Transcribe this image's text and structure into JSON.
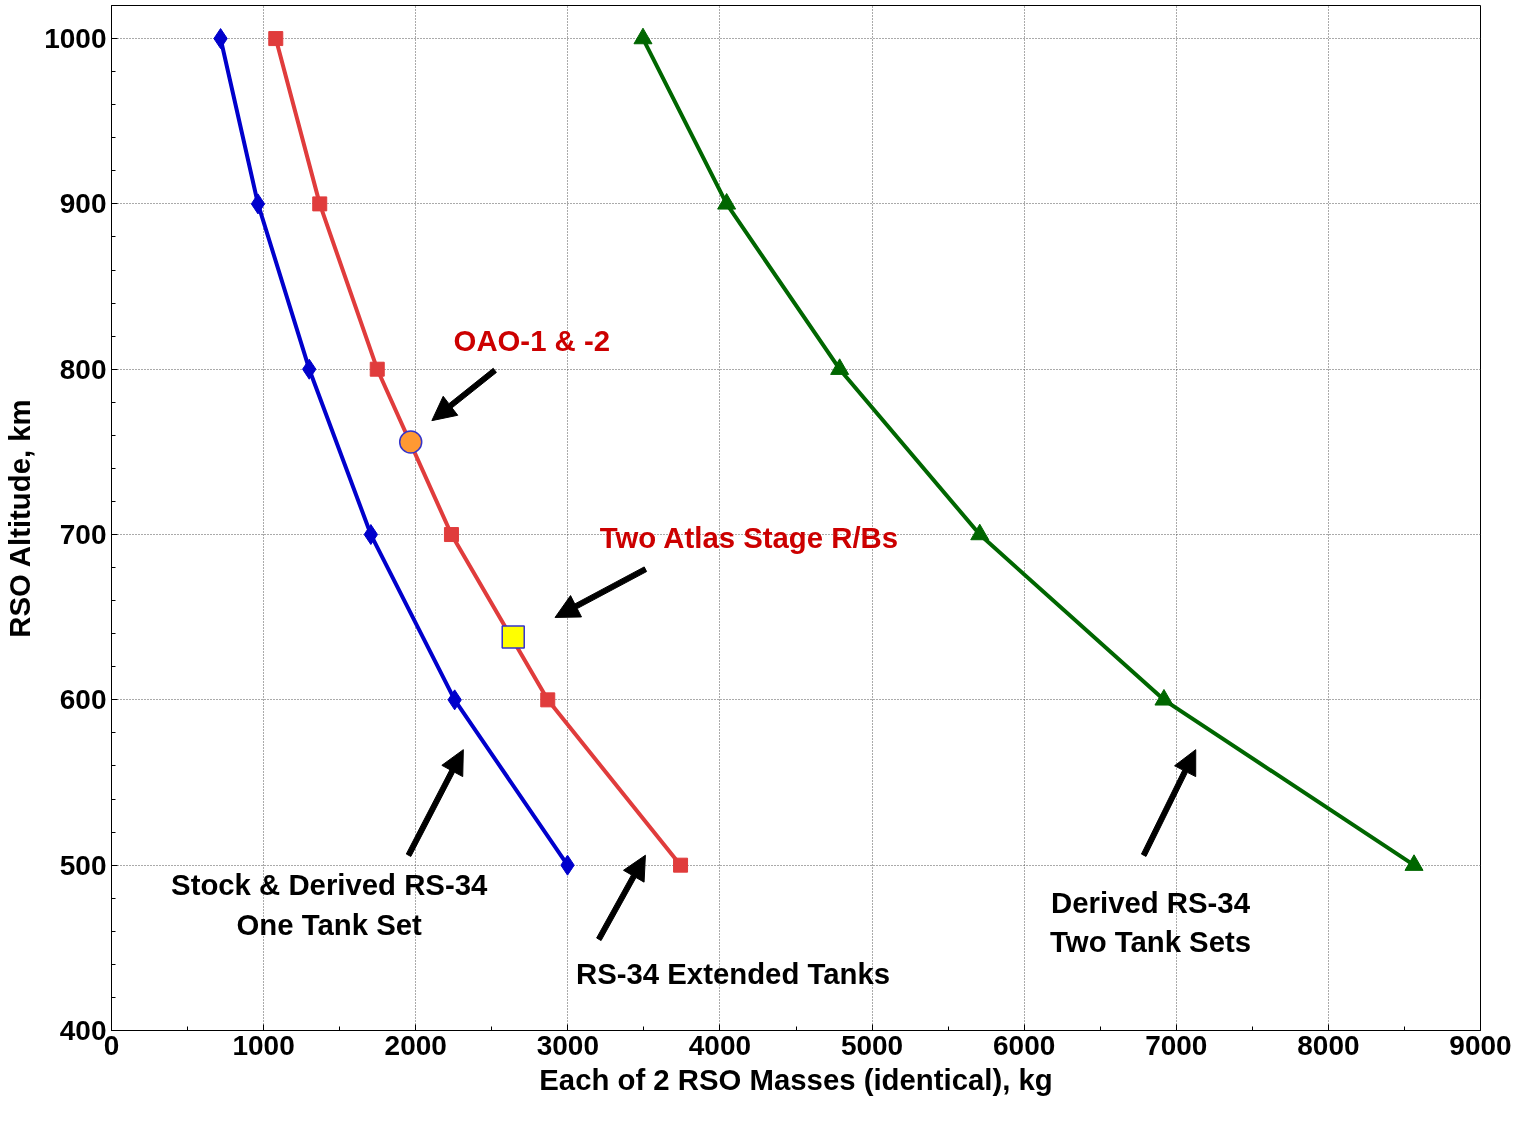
{
  "chart_data": {
    "type": "line",
    "xlabel": "Each of 2 RSO Masses (identical), kg",
    "ylabel": "RSO Altitude, km",
    "xlim": [
      0,
      9000
    ],
    "ylim": [
      400,
      1020
    ],
    "xticks": [
      0,
      1000,
      2000,
      3000,
      4000,
      5000,
      6000,
      7000,
      8000,
      9000
    ],
    "yticks": [
      400,
      500,
      600,
      700,
      800,
      900,
      1000
    ],
    "grid": true,
    "line_style": "solid",
    "series": [
      {
        "color": "#0000cc",
        "marker": "diamond",
        "x": [
          717,
          963,
          1300,
          1705,
          2256,
          2998
        ],
        "values": [
          1000,
          900,
          800,
          700,
          600,
          500
        ]
      },
      {
        "color": "#e03c3c",
        "marker": "square",
        "x": [
          1080,
          1369,
          1747,
          2235,
          2868,
          3741
        ],
        "values": [
          1000,
          900,
          800,
          700,
          600,
          500
        ]
      },
      {
        "color": "#006600",
        "marker": "triangle",
        "x": [
          3494,
          4044,
          4787,
          5708,
          6919,
          8563
        ],
        "values": [
          1000,
          900,
          800,
          700,
          600,
          500
        ]
      },
      {
        "type": "scatter",
        "color": "#ff9933",
        "marker": "circle",
        "x": [
          1967
        ],
        "values": [
          756
        ]
      },
      {
        "type": "scatter",
        "color": "#ffff00",
        "marker": "square",
        "x": [
          2641
        ],
        "values": [
          638
        ]
      }
    ],
    "annotations": [
      "OAO-1 & -2",
      "Two Atlas Stage R/Bs",
      "Stock & Derived RS-34\nOne Tank Set",
      "RS-34 Extended Tanks",
      "Derived RS-34\nTwo Tank Sets"
    ]
  }
}
